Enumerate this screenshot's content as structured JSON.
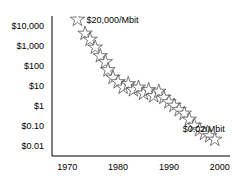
{
  "chart_data": {
    "type": "scatter",
    "x": [
      1972,
      1973.5,
      1974.5,
      1975.5,
      1976.5,
      1977.5,
      1978,
      1979,
      1980,
      1981,
      1982,
      1983,
      1984,
      1985,
      1986,
      1987,
      1988,
      1989,
      1990,
      1991,
      1992,
      1993,
      1994,
      1995,
      1996,
      1997,
      1998,
      1999
    ],
    "values": [
      20000,
      4000,
      2000,
      800,
      300,
      150,
      60,
      25,
      15,
      8,
      12,
      6,
      8,
      4,
      6,
      3,
      5,
      2.5,
      1.5,
      1,
      0.6,
      0.4,
      0.2,
      0.1,
      0.06,
      0.04,
      0.03,
      0.02
    ],
    "xlim": [
      1967,
      2002
    ],
    "ylim": [
      0.003,
      30000
    ],
    "xticks": [
      1970,
      1980,
      1990,
      2000
    ],
    "yticks": [
      {
        "value": 0.01,
        "label": "$0.01"
      },
      {
        "value": 0.1,
        "label": "$0.10"
      },
      {
        "value": 1,
        "label": "$1"
      },
      {
        "value": 10,
        "label": "$10"
      },
      {
        "value": 100,
        "label": "$100"
      },
      {
        "value": 1000,
        "label": "$1,000"
      },
      {
        "value": 10000,
        "label": "$10,000"
      }
    ],
    "log": "y",
    "grid": false,
    "marker": "star",
    "color": "#ffffff",
    "annotations": [
      {
        "text": "$20,000/Mbit",
        "x": 1972,
        "y": 20000
      },
      {
        "text": "$0.02/Mbit",
        "x": 1999,
        "y": 0.02
      }
    ]
  }
}
